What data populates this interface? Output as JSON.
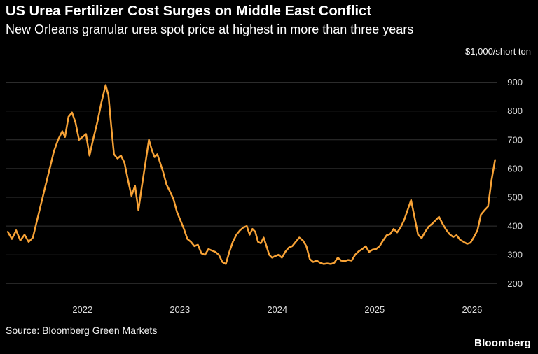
{
  "header": {
    "title": "US Urea Fertilizer Cost Surges on Middle East Conflict",
    "subtitle": "New Orleans granular urea spot price at highest in more than three years",
    "unit_label": "$1,000/short ton"
  },
  "footer": {
    "source": "Source: Bloomberg Green Markets",
    "brand": "Bloomberg"
  },
  "chart_data": {
    "type": "line",
    "title": "US Urea Fertilizer Cost Surges on Middle East Conflict",
    "subtitle": "New Orleans granular urea spot price at highest in more than three years",
    "ylabel": "$1,000/short ton",
    "xlabel": "",
    "grid": true,
    "legend": "none",
    "background_color": "#000000",
    "line_color": "#F7A236",
    "grid_color": "#333333",
    "axis_label_color": "#DBDBDB",
    "ylim": [
      140,
      955
    ],
    "xlim": [
      2021.21,
      2026.26
    ],
    "yticks": [
      200,
      300,
      400,
      500,
      600,
      700,
      800,
      900
    ],
    "xticks": [
      2022,
      2023,
      2024,
      2025,
      2026
    ],
    "series": [
      {
        "name": "New Orleans granular urea spot price",
        "points": [
          [
            2021.232,
            380
          ],
          [
            2021.275,
            355
          ],
          [
            2021.318,
            385
          ],
          [
            2021.361,
            350
          ],
          [
            2021.404,
            370
          ],
          [
            2021.447,
            345
          ],
          [
            2021.49,
            360
          ],
          [
            2021.533,
            420
          ],
          [
            2021.576,
            480
          ],
          [
            2021.619,
            540
          ],
          [
            2021.663,
            600
          ],
          [
            2021.706,
            660
          ],
          [
            2021.749,
            700
          ],
          [
            2021.792,
            730
          ],
          [
            2021.82,
            710
          ],
          [
            2021.856,
            780
          ],
          [
            2021.892,
            795
          ],
          [
            2021.928,
            760
          ],
          [
            2021.964,
            700
          ],
          [
            2022.0,
            710
          ],
          [
            2022.036,
            720
          ],
          [
            2022.072,
            645
          ],
          [
            2022.108,
            700
          ],
          [
            2022.151,
            760
          ],
          [
            2022.194,
            830
          ],
          [
            2022.237,
            890
          ],
          [
            2022.266,
            855
          ],
          [
            2022.294,
            750
          ],
          [
            2022.323,
            650
          ],
          [
            2022.359,
            635
          ],
          [
            2022.395,
            645
          ],
          [
            2022.431,
            620
          ],
          [
            2022.467,
            560
          ],
          [
            2022.503,
            505
          ],
          [
            2022.539,
            540
          ],
          [
            2022.574,
            455
          ],
          [
            2022.61,
            540
          ],
          [
            2022.646,
            620
          ],
          [
            2022.682,
            700
          ],
          [
            2022.711,
            665
          ],
          [
            2022.74,
            640
          ],
          [
            2022.768,
            650
          ],
          [
            2022.797,
            620
          ],
          [
            2022.826,
            590
          ],
          [
            2022.862,
            545
          ],
          [
            2022.898,
            520
          ],
          [
            2022.933,
            495
          ],
          [
            2022.969,
            450
          ],
          [
            2023.005,
            420
          ],
          [
            2023.041,
            390
          ],
          [
            2023.077,
            355
          ],
          [
            2023.113,
            345
          ],
          [
            2023.149,
            330
          ],
          [
            2023.185,
            335
          ],
          [
            2023.221,
            305
          ],
          [
            2023.257,
            300
          ],
          [
            2023.293,
            320
          ],
          [
            2023.328,
            315
          ],
          [
            2023.364,
            310
          ],
          [
            2023.4,
            300
          ],
          [
            2023.436,
            275
          ],
          [
            2023.472,
            268
          ],
          [
            2023.508,
            310
          ],
          [
            2023.544,
            345
          ],
          [
            2023.58,
            370
          ],
          [
            2023.616,
            385
          ],
          [
            2023.651,
            395
          ],
          [
            2023.687,
            400
          ],
          [
            2023.716,
            370
          ],
          [
            2023.745,
            390
          ],
          [
            2023.774,
            380
          ],
          [
            2023.802,
            345
          ],
          [
            2023.831,
            340
          ],
          [
            2023.86,
            360
          ],
          [
            2023.889,
            330
          ],
          [
            2023.917,
            300
          ],
          [
            2023.946,
            290
          ],
          [
            2023.975,
            295
          ],
          [
            2024.011,
            300
          ],
          [
            2024.047,
            290
          ],
          [
            2024.082,
            310
          ],
          [
            2024.118,
            325
          ],
          [
            2024.154,
            330
          ],
          [
            2024.19,
            345
          ],
          [
            2024.226,
            360
          ],
          [
            2024.262,
            350
          ],
          [
            2024.298,
            330
          ],
          [
            2024.334,
            285
          ],
          [
            2024.369,
            275
          ],
          [
            2024.405,
            280
          ],
          [
            2024.441,
            272
          ],
          [
            2024.477,
            268
          ],
          [
            2024.513,
            270
          ],
          [
            2024.549,
            268
          ],
          [
            2024.585,
            272
          ],
          [
            2024.621,
            290
          ],
          [
            2024.656,
            280
          ],
          [
            2024.692,
            278
          ],
          [
            2024.728,
            282
          ],
          [
            2024.764,
            280
          ],
          [
            2024.8,
            300
          ],
          [
            2024.836,
            312
          ],
          [
            2024.872,
            320
          ],
          [
            2024.908,
            330
          ],
          [
            2024.943,
            310
          ],
          [
            2024.979,
            318
          ],
          [
            2025.015,
            320
          ],
          [
            2025.051,
            330
          ],
          [
            2025.087,
            350
          ],
          [
            2025.123,
            368
          ],
          [
            2025.159,
            372
          ],
          [
            2025.195,
            390
          ],
          [
            2025.231,
            378
          ],
          [
            2025.266,
            395
          ],
          [
            2025.302,
            420
          ],
          [
            2025.338,
            455
          ],
          [
            2025.374,
            490
          ],
          [
            2025.41,
            430
          ],
          [
            2025.446,
            370
          ],
          [
            2025.482,
            358
          ],
          [
            2025.518,
            380
          ],
          [
            2025.554,
            398
          ],
          [
            2025.59,
            408
          ],
          [
            2025.626,
            420
          ],
          [
            2025.661,
            432
          ],
          [
            2025.697,
            408
          ],
          [
            2025.733,
            388
          ],
          [
            2025.769,
            372
          ],
          [
            2025.805,
            362
          ],
          [
            2025.841,
            368
          ],
          [
            2025.877,
            352
          ],
          [
            2025.913,
            345
          ],
          [
            2025.949,
            338
          ],
          [
            2025.984,
            342
          ],
          [
            2026.02,
            362
          ],
          [
            2026.056,
            385
          ],
          [
            2026.092,
            440
          ],
          [
            2026.128,
            455
          ],
          [
            2026.164,
            468
          ],
          [
            2026.2,
            560
          ],
          [
            2026.236,
            630
          ]
        ]
      }
    ]
  }
}
